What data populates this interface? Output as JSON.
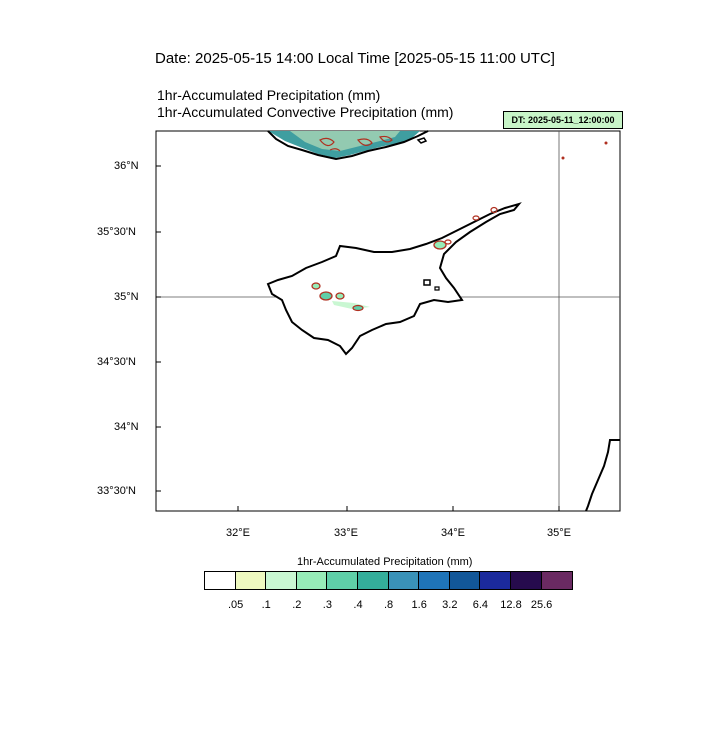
{
  "header": {
    "date_line": "Date: 2025-05-15  14:00 Local Time [2025-05-15  11:00 UTC]",
    "title_line_1": "1hr-Accumulated Precipitation   (mm)",
    "title_line_2": "1hr-Accumulated Convective Precipitation   (mm)",
    "dt_badge": "DT: 2025-05-11_12:00:00"
  },
  "map": {
    "lat_labels": [
      "36°N",
      "35°30'N",
      "35°N",
      "34°30'N",
      "34°N",
      "33°30'N"
    ],
    "lon_labels": [
      "32°E",
      "33°E",
      "34°E",
      "35°E"
    ],
    "coastline_color": "#000000",
    "precip_contour_color": "#b03020",
    "reference_lines": [
      "35°N",
      "35°E"
    ]
  },
  "colorbar": {
    "title": "1hr-Accumulated Precipitation  (mm)",
    "colors": [
      "#ffffff",
      "#eef9c0",
      "#c9f7d2",
      "#97ecb8",
      "#5fcfa8",
      "#34ae9b",
      "#3a92b8",
      "#1f74b8",
      "#125799",
      "#1b2a9c",
      "#260b4d",
      "#6a2a62"
    ],
    "labels": [
      ".05",
      ".1",
      ".2",
      ".3",
      ".4",
      ".8",
      "1.6",
      "3.2",
      "6.4",
      "12.8",
      "25.6"
    ]
  }
}
